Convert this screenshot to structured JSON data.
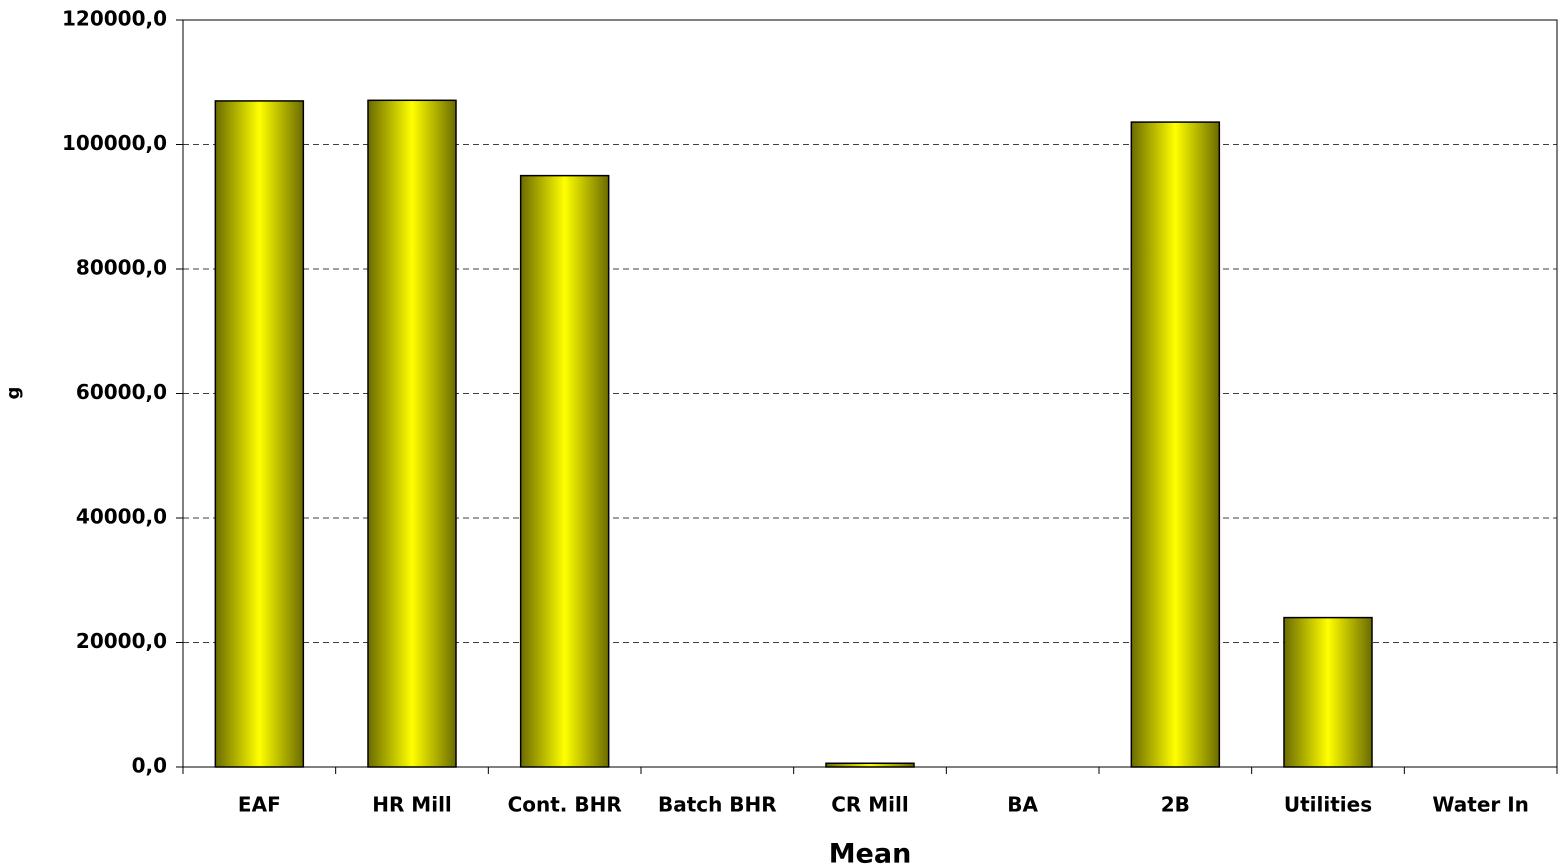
{
  "chart_data": {
    "type": "bar",
    "y_label": "g",
    "x_label": "Mean",
    "categories": [
      "EAF",
      "HR Mill",
      "Cont. BHR",
      "Batch BHR",
      "CR Mill",
      "BA",
      "2B",
      "Utilities",
      "Water In"
    ],
    "values": [
      107000,
      107100,
      95000,
      0,
      600,
      0,
      103600,
      24000,
      0
    ],
    "color": "#ffff00",
    "ylim": [
      0,
      120000
    ],
    "yticks": [
      {
        "value": 0,
        "label": "0,0"
      },
      {
        "value": 20000,
        "label": "20000,0"
      },
      {
        "value": 40000,
        "label": "40000,0"
      },
      {
        "value": 60000,
        "label": "60000,0"
      },
      {
        "value": 80000,
        "label": "80000,0"
      },
      {
        "value": 100000,
        "label": "100000,0"
      },
      {
        "value": 120000,
        "label": "120000,0"
      }
    ],
    "grid": true
  }
}
